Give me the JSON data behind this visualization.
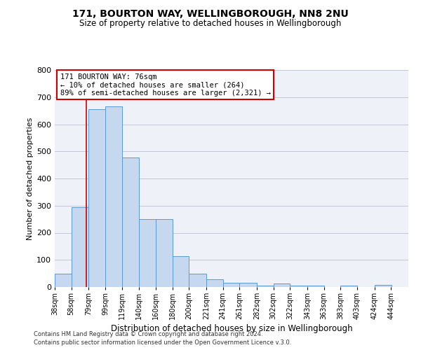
{
  "title": "171, BOURTON WAY, WELLINGBOROUGH, NN8 2NU",
  "subtitle": "Size of property relative to detached houses in Wellingborough",
  "xlabel": "Distribution of detached houses by size in Wellingborough",
  "ylabel": "Number of detached properties",
  "bar_left_edges": [
    38,
    58,
    79,
    99,
    119,
    140,
    160,
    180,
    200,
    221,
    241,
    261,
    282,
    302,
    322,
    343,
    363,
    383,
    403,
    424
  ],
  "bar_heights": [
    48,
    293,
    655,
    665,
    477,
    251,
    251,
    114,
    49,
    28,
    15,
    15,
    5,
    14,
    5,
    5,
    0,
    5,
    0,
    7
  ],
  "bin_labels": [
    "38sqm",
    "58sqm",
    "79sqm",
    "99sqm",
    "119sqm",
    "140sqm",
    "160sqm",
    "180sqm",
    "200sqm",
    "221sqm",
    "241sqm",
    "261sqm",
    "282sqm",
    "302sqm",
    "322sqm",
    "343sqm",
    "363sqm",
    "383sqm",
    "403sqm",
    "424sqm",
    "444sqm"
  ],
  "bar_color": "#c5d8f0",
  "bar_edge_color": "#5b9bd5",
  "property_line_x": 76,
  "property_line_color": "#cc0000",
  "annotation_line1": "171 BOURTON WAY: 76sqm",
  "annotation_line2": "← 10% of detached houses are smaller (264)",
  "annotation_line3": "89% of semi-detached houses are larger (2,321) →",
  "annotation_box_color": "#cc0000",
  "ylim": [
    0,
    800
  ],
  "yticks": [
    0,
    100,
    200,
    300,
    400,
    500,
    600,
    700,
    800
  ],
  "grid_color": "#c0c8d8",
  "bg_color": "#eef2f8",
  "footer_line1": "Contains HM Land Registry data © Crown copyright and database right 2024.",
  "footer_line2": "Contains public sector information licensed under the Open Government Licence v.3.0."
}
